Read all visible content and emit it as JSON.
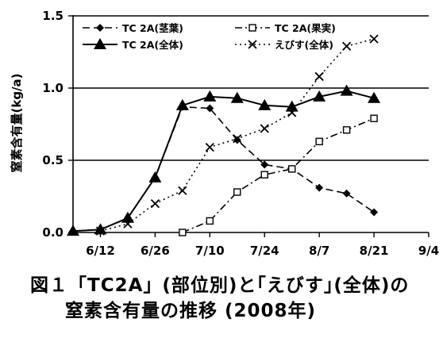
{
  "caption": {
    "line1": "図１「TC2A」(部位別)と｢えびす｣(全体)の",
    "line2": "窒素含有量の推移 (2008年)"
  },
  "chart_data": {
    "type": "line",
    "title": "",
    "xlabel": "",
    "ylabel": "窒素含有量(kg/a)",
    "ylim": [
      0,
      1.5
    ],
    "xlim": [
      "6/5",
      "9/4"
    ],
    "x_ticks": [
      "6/12",
      "6/26",
      "7/10",
      "7/24",
      "8/7",
      "8/21",
      "9/4"
    ],
    "y_ticks": [
      "0.0",
      "0.5",
      "1.0",
      "1.5"
    ],
    "gridlines_y": [
      0.5,
      1.0,
      1.5
    ],
    "legend_position": "top-left, two columns",
    "series": [
      {
        "name": "TC 2A(茎葉)",
        "style": "dashed",
        "marker": "diamond",
        "color": "#000000",
        "points": [
          {
            "x": "6/5",
            "y": 0.01
          },
          {
            "x": "6/12",
            "y": 0.02
          },
          {
            "x": "6/19",
            "y": 0.1
          },
          {
            "x": "6/26",
            "y": 0.38
          },
          {
            "x": "7/3",
            "y": 0.87
          },
          {
            "x": "7/10",
            "y": 0.86
          },
          {
            "x": "7/17",
            "y": 0.64
          },
          {
            "x": "7/24",
            "y": 0.47
          },
          {
            "x": "7/31",
            "y": 0.44
          },
          {
            "x": "8/7",
            "y": 0.31
          },
          {
            "x": "8/14",
            "y": 0.27
          },
          {
            "x": "8/21",
            "y": 0.14
          }
        ]
      },
      {
        "name": "TC 2A(果実)",
        "style": "dashdot",
        "marker": "square",
        "color": "#000000",
        "points": [
          {
            "x": "7/3",
            "y": 0.0
          },
          {
            "x": "7/10",
            "y": 0.08
          },
          {
            "x": "7/17",
            "y": 0.28
          },
          {
            "x": "7/24",
            "y": 0.4
          },
          {
            "x": "7/31",
            "y": 0.44
          },
          {
            "x": "8/7",
            "y": 0.63
          },
          {
            "x": "8/14",
            "y": 0.71
          },
          {
            "x": "8/21",
            "y": 0.79
          }
        ]
      },
      {
        "name": "TC 2A(全体)",
        "style": "solid",
        "marker": "triangle",
        "color": "#000000",
        "points": [
          {
            "x": "6/5",
            "y": 0.01
          },
          {
            "x": "6/12",
            "y": 0.02
          },
          {
            "x": "6/19",
            "y": 0.1
          },
          {
            "x": "6/26",
            "y": 0.38
          },
          {
            "x": "7/3",
            "y": 0.88
          },
          {
            "x": "7/10",
            "y": 0.94
          },
          {
            "x": "7/17",
            "y": 0.93
          },
          {
            "x": "7/24",
            "y": 0.88
          },
          {
            "x": "7/31",
            "y": 0.87
          },
          {
            "x": "8/7",
            "y": 0.94
          },
          {
            "x": "8/14",
            "y": 0.98
          },
          {
            "x": "8/21",
            "y": 0.93
          }
        ]
      },
      {
        "name": "えびす(全体)",
        "style": "dotted",
        "marker": "x",
        "color": "#000000",
        "points": [
          {
            "x": "6/12",
            "y": 0.01
          },
          {
            "x": "6/19",
            "y": 0.06
          },
          {
            "x": "6/26",
            "y": 0.2
          },
          {
            "x": "7/3",
            "y": 0.29
          },
          {
            "x": "7/10",
            "y": 0.59
          },
          {
            "x": "7/17",
            "y": 0.65
          },
          {
            "x": "7/24",
            "y": 0.72
          },
          {
            "x": "7/31",
            "y": 0.83
          },
          {
            "x": "8/7",
            "y": 1.08
          },
          {
            "x": "8/14",
            "y": 1.29
          },
          {
            "x": "8/21",
            "y": 1.34
          }
        ]
      }
    ]
  }
}
